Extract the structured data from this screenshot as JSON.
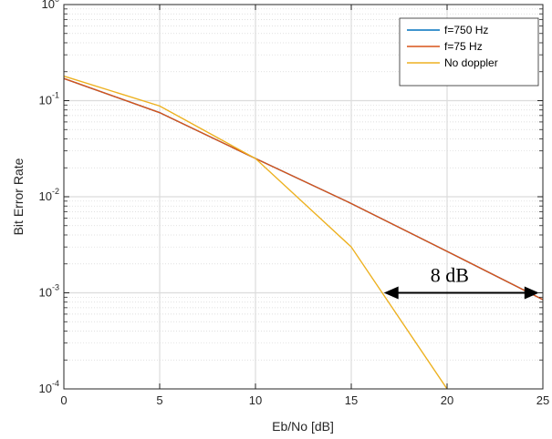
{
  "chart_data": {
    "type": "line",
    "xlabel": "Eb/No [dB]",
    "ylabel": "Bit Error Rate",
    "xlim": [
      0,
      25
    ],
    "ylim": [
      0.0001,
      1
    ],
    "yscale": "log",
    "grid": true,
    "minor_grid": true,
    "xticks": [
      "0",
      "5",
      "10",
      "15",
      "20",
      "25"
    ],
    "yticks": [
      {
        "base": "10",
        "exp": "-4"
      },
      {
        "base": "10",
        "exp": "-3"
      },
      {
        "base": "10",
        "exp": "-2"
      },
      {
        "base": "10",
        "exp": "-1"
      },
      {
        "base": "10",
        "exp": "0"
      }
    ],
    "legend_position": "top-right",
    "series": [
      {
        "name": "f=750 Hz",
        "color": "#0072BD",
        "x": [
          0,
          5,
          10,
          15,
          20,
          25
        ],
        "y": [
          0.17,
          0.075,
          0.025,
          0.0085,
          0.0027,
          0.00085
        ]
      },
      {
        "name": "f=75 Hz",
        "color": "#D95319",
        "x": [
          0,
          5,
          10,
          15,
          20,
          25
        ],
        "y": [
          0.17,
          0.075,
          0.025,
          0.0085,
          0.0027,
          0.00085
        ]
      },
      {
        "name": "No doppler",
        "color": "#EDB120",
        "x": [
          0,
          5,
          10,
          15,
          20
        ],
        "y": [
          0.18,
          0.088,
          0.025,
          0.003,
          0.0001
        ]
      }
    ],
    "annotations": [
      {
        "text": "8 dB",
        "arrow_from": [
          16.7,
          0.001
        ],
        "arrow_to": [
          24.8,
          0.001
        ]
      }
    ]
  }
}
